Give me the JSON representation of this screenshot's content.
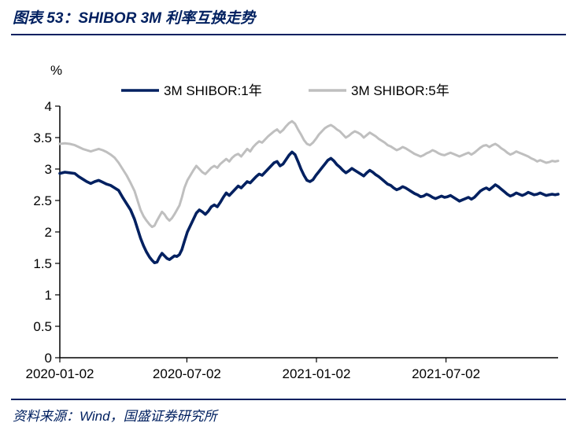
{
  "header": {
    "title": "图表 53：SHIBOR 3M 利率互换走势"
  },
  "footer": {
    "source": "资料来源：Wind，国盛证券研究所"
  },
  "chart": {
    "type": "line",
    "y_unit_label": "%",
    "background_color": "#ffffff",
    "axis_color": "#000000",
    "tick_length": 6,
    "ylim": [
      0,
      4
    ],
    "ytick_step": 0.5,
    "yticks": [
      0,
      0.5,
      1,
      1.5,
      2,
      2.5,
      3,
      3.5,
      4
    ],
    "xticks": [
      {
        "t": 0.0,
        "label": "2020-01-02"
      },
      {
        "t": 0.255,
        "label": "2020-07-02"
      },
      {
        "t": 0.515,
        "label": "2021-01-02"
      },
      {
        "t": 0.775,
        "label": "2021-07-02"
      }
    ],
    "line_width_1y": 3.6,
    "line_width_5y": 3.0,
    "legend": {
      "items": [
        {
          "label": "3M SHIBOR:1年",
          "color": "#002060",
          "width": 3.6
        },
        {
          "label": "3M SHIBOR:5年",
          "color": "#bfbfbf",
          "width": 3.0
        }
      ]
    },
    "series_1y": {
      "color": "#002060",
      "points": [
        [
          0.0,
          2.93
        ],
        [
          0.01,
          2.95
        ],
        [
          0.02,
          2.94
        ],
        [
          0.03,
          2.93
        ],
        [
          0.038,
          2.88
        ],
        [
          0.046,
          2.84
        ],
        [
          0.054,
          2.8
        ],
        [
          0.062,
          2.77
        ],
        [
          0.07,
          2.8
        ],
        [
          0.078,
          2.82
        ],
        [
          0.086,
          2.79
        ],
        [
          0.094,
          2.76
        ],
        [
          0.102,
          2.74
        ],
        [
          0.11,
          2.7
        ],
        [
          0.118,
          2.66
        ],
        [
          0.126,
          2.55
        ],
        [
          0.134,
          2.45
        ],
        [
          0.142,
          2.35
        ],
        [
          0.15,
          2.2
        ],
        [
          0.156,
          2.05
        ],
        [
          0.162,
          1.9
        ],
        [
          0.168,
          1.78
        ],
        [
          0.174,
          1.68
        ],
        [
          0.18,
          1.6
        ],
        [
          0.185,
          1.55
        ],
        [
          0.19,
          1.51
        ],
        [
          0.195,
          1.52
        ],
        [
          0.2,
          1.6
        ],
        [
          0.205,
          1.66
        ],
        [
          0.21,
          1.62
        ],
        [
          0.215,
          1.58
        ],
        [
          0.22,
          1.56
        ],
        [
          0.225,
          1.59
        ],
        [
          0.23,
          1.62
        ],
        [
          0.235,
          1.61
        ],
        [
          0.24,
          1.64
        ],
        [
          0.245,
          1.72
        ],
        [
          0.25,
          1.85
        ],
        [
          0.256,
          2.0
        ],
        [
          0.262,
          2.1
        ],
        [
          0.268,
          2.2
        ],
        [
          0.274,
          2.3
        ],
        [
          0.28,
          2.35
        ],
        [
          0.286,
          2.32
        ],
        [
          0.292,
          2.28
        ],
        [
          0.298,
          2.33
        ],
        [
          0.304,
          2.4
        ],
        [
          0.31,
          2.43
        ],
        [
          0.316,
          2.4
        ],
        [
          0.322,
          2.47
        ],
        [
          0.328,
          2.55
        ],
        [
          0.334,
          2.62
        ],
        [
          0.34,
          2.58
        ],
        [
          0.346,
          2.63
        ],
        [
          0.352,
          2.68
        ],
        [
          0.358,
          2.73
        ],
        [
          0.364,
          2.7
        ],
        [
          0.37,
          2.75
        ],
        [
          0.376,
          2.8
        ],
        [
          0.382,
          2.78
        ],
        [
          0.388,
          2.83
        ],
        [
          0.394,
          2.88
        ],
        [
          0.4,
          2.92
        ],
        [
          0.406,
          2.9
        ],
        [
          0.412,
          2.95
        ],
        [
          0.418,
          3.0
        ],
        [
          0.424,
          3.05
        ],
        [
          0.43,
          3.1
        ],
        [
          0.436,
          3.12
        ],
        [
          0.442,
          3.05
        ],
        [
          0.448,
          3.08
        ],
        [
          0.454,
          3.15
        ],
        [
          0.46,
          3.22
        ],
        [
          0.466,
          3.27
        ],
        [
          0.472,
          3.23
        ],
        [
          0.478,
          3.12
        ],
        [
          0.484,
          3.0
        ],
        [
          0.49,
          2.9
        ],
        [
          0.496,
          2.82
        ],
        [
          0.502,
          2.8
        ],
        [
          0.508,
          2.83
        ],
        [
          0.514,
          2.9
        ],
        [
          0.52,
          2.96
        ],
        [
          0.526,
          3.02
        ],
        [
          0.532,
          3.08
        ],
        [
          0.538,
          3.14
        ],
        [
          0.544,
          3.17
        ],
        [
          0.55,
          3.13
        ],
        [
          0.556,
          3.07
        ],
        [
          0.562,
          3.03
        ],
        [
          0.568,
          2.98
        ],
        [
          0.574,
          2.94
        ],
        [
          0.58,
          2.97
        ],
        [
          0.586,
          3.01
        ],
        [
          0.592,
          2.98
        ],
        [
          0.598,
          2.95
        ],
        [
          0.604,
          2.92
        ],
        [
          0.61,
          2.89
        ],
        [
          0.616,
          2.94
        ],
        [
          0.622,
          2.98
        ],
        [
          0.628,
          2.95
        ],
        [
          0.634,
          2.91
        ],
        [
          0.64,
          2.88
        ],
        [
          0.646,
          2.84
        ],
        [
          0.652,
          2.8
        ],
        [
          0.658,
          2.76
        ],
        [
          0.664,
          2.74
        ],
        [
          0.67,
          2.7
        ],
        [
          0.676,
          2.67
        ],
        [
          0.682,
          2.69
        ],
        [
          0.688,
          2.72
        ],
        [
          0.694,
          2.7
        ],
        [
          0.7,
          2.67
        ],
        [
          0.706,
          2.64
        ],
        [
          0.712,
          2.61
        ],
        [
          0.718,
          2.59
        ],
        [
          0.724,
          2.56
        ],
        [
          0.73,
          2.57
        ],
        [
          0.736,
          2.6
        ],
        [
          0.742,
          2.58
        ],
        [
          0.748,
          2.55
        ],
        [
          0.754,
          2.53
        ],
        [
          0.76,
          2.55
        ],
        [
          0.766,
          2.57
        ],
        [
          0.772,
          2.55
        ],
        [
          0.778,
          2.56
        ],
        [
          0.784,
          2.58
        ],
        [
          0.79,
          2.55
        ],
        [
          0.796,
          2.52
        ],
        [
          0.802,
          2.49
        ],
        [
          0.808,
          2.51
        ],
        [
          0.814,
          2.53
        ],
        [
          0.82,
          2.55
        ],
        [
          0.826,
          2.52
        ],
        [
          0.832,
          2.55
        ],
        [
          0.838,
          2.6
        ],
        [
          0.844,
          2.65
        ],
        [
          0.85,
          2.68
        ],
        [
          0.856,
          2.7
        ],
        [
          0.862,
          2.67
        ],
        [
          0.868,
          2.71
        ],
        [
          0.874,
          2.75
        ],
        [
          0.88,
          2.72
        ],
        [
          0.886,
          2.68
        ],
        [
          0.892,
          2.64
        ],
        [
          0.898,
          2.6
        ],
        [
          0.904,
          2.57
        ],
        [
          0.91,
          2.59
        ],
        [
          0.916,
          2.62
        ],
        [
          0.922,
          2.6
        ],
        [
          0.928,
          2.58
        ],
        [
          0.934,
          2.6
        ],
        [
          0.94,
          2.63
        ],
        [
          0.946,
          2.61
        ],
        [
          0.952,
          2.59
        ],
        [
          0.958,
          2.6
        ],
        [
          0.964,
          2.62
        ],
        [
          0.97,
          2.6
        ],
        [
          0.976,
          2.58
        ],
        [
          0.982,
          2.59
        ],
        [
          0.988,
          2.6
        ],
        [
          0.994,
          2.59
        ],
        [
          1.0,
          2.6
        ]
      ]
    },
    "series_5y": {
      "color": "#bfbfbf",
      "points": [
        [
          0.0,
          3.4
        ],
        [
          0.01,
          3.41
        ],
        [
          0.02,
          3.4
        ],
        [
          0.03,
          3.38
        ],
        [
          0.038,
          3.35
        ],
        [
          0.046,
          3.32
        ],
        [
          0.054,
          3.3
        ],
        [
          0.062,
          3.28
        ],
        [
          0.07,
          3.3
        ],
        [
          0.078,
          3.32
        ],
        [
          0.086,
          3.3
        ],
        [
          0.094,
          3.27
        ],
        [
          0.102,
          3.23
        ],
        [
          0.11,
          3.18
        ],
        [
          0.118,
          3.1
        ],
        [
          0.126,
          3.0
        ],
        [
          0.134,
          2.9
        ],
        [
          0.142,
          2.78
        ],
        [
          0.15,
          2.65
        ],
        [
          0.156,
          2.5
        ],
        [
          0.162,
          2.35
        ],
        [
          0.168,
          2.25
        ],
        [
          0.174,
          2.18
        ],
        [
          0.18,
          2.12
        ],
        [
          0.185,
          2.08
        ],
        [
          0.19,
          2.1
        ],
        [
          0.195,
          2.18
        ],
        [
          0.2,
          2.25
        ],
        [
          0.205,
          2.32
        ],
        [
          0.21,
          2.28
        ],
        [
          0.215,
          2.22
        ],
        [
          0.22,
          2.18
        ],
        [
          0.225,
          2.22
        ],
        [
          0.23,
          2.28
        ],
        [
          0.235,
          2.35
        ],
        [
          0.24,
          2.42
        ],
        [
          0.245,
          2.55
        ],
        [
          0.25,
          2.7
        ],
        [
          0.256,
          2.82
        ],
        [
          0.262,
          2.9
        ],
        [
          0.268,
          2.98
        ],
        [
          0.274,
          3.05
        ],
        [
          0.28,
          3.0
        ],
        [
          0.286,
          2.95
        ],
        [
          0.292,
          2.92
        ],
        [
          0.298,
          2.97
        ],
        [
          0.304,
          3.02
        ],
        [
          0.31,
          3.05
        ],
        [
          0.316,
          3.02
        ],
        [
          0.322,
          3.08
        ],
        [
          0.328,
          3.12
        ],
        [
          0.334,
          3.16
        ],
        [
          0.34,
          3.12
        ],
        [
          0.346,
          3.18
        ],
        [
          0.352,
          3.22
        ],
        [
          0.358,
          3.24
        ],
        [
          0.364,
          3.2
        ],
        [
          0.37,
          3.26
        ],
        [
          0.376,
          3.32
        ],
        [
          0.382,
          3.28
        ],
        [
          0.388,
          3.35
        ],
        [
          0.394,
          3.4
        ],
        [
          0.4,
          3.44
        ],
        [
          0.406,
          3.42
        ],
        [
          0.412,
          3.47
        ],
        [
          0.418,
          3.52
        ],
        [
          0.424,
          3.56
        ],
        [
          0.43,
          3.6
        ],
        [
          0.436,
          3.63
        ],
        [
          0.442,
          3.58
        ],
        [
          0.448,
          3.62
        ],
        [
          0.454,
          3.68
        ],
        [
          0.46,
          3.73
        ],
        [
          0.466,
          3.76
        ],
        [
          0.472,
          3.72
        ],
        [
          0.478,
          3.63
        ],
        [
          0.484,
          3.55
        ],
        [
          0.49,
          3.46
        ],
        [
          0.496,
          3.4
        ],
        [
          0.502,
          3.38
        ],
        [
          0.508,
          3.42
        ],
        [
          0.514,
          3.48
        ],
        [
          0.52,
          3.55
        ],
        [
          0.526,
          3.6
        ],
        [
          0.532,
          3.65
        ],
        [
          0.538,
          3.68
        ],
        [
          0.544,
          3.7
        ],
        [
          0.55,
          3.67
        ],
        [
          0.556,
          3.63
        ],
        [
          0.562,
          3.6
        ],
        [
          0.568,
          3.55
        ],
        [
          0.574,
          3.5
        ],
        [
          0.58,
          3.53
        ],
        [
          0.586,
          3.57
        ],
        [
          0.592,
          3.6
        ],
        [
          0.598,
          3.58
        ],
        [
          0.604,
          3.55
        ],
        [
          0.61,
          3.5
        ],
        [
          0.616,
          3.54
        ],
        [
          0.622,
          3.58
        ],
        [
          0.628,
          3.55
        ],
        [
          0.634,
          3.52
        ],
        [
          0.64,
          3.48
        ],
        [
          0.646,
          3.45
        ],
        [
          0.652,
          3.42
        ],
        [
          0.658,
          3.38
        ],
        [
          0.664,
          3.36
        ],
        [
          0.67,
          3.33
        ],
        [
          0.676,
          3.3
        ],
        [
          0.682,
          3.32
        ],
        [
          0.688,
          3.35
        ],
        [
          0.694,
          3.33
        ],
        [
          0.7,
          3.3
        ],
        [
          0.706,
          3.27
        ],
        [
          0.712,
          3.24
        ],
        [
          0.718,
          3.22
        ],
        [
          0.724,
          3.2
        ],
        [
          0.73,
          3.22
        ],
        [
          0.736,
          3.25
        ],
        [
          0.742,
          3.27
        ],
        [
          0.748,
          3.3
        ],
        [
          0.754,
          3.28
        ],
        [
          0.76,
          3.25
        ],
        [
          0.766,
          3.23
        ],
        [
          0.772,
          3.22
        ],
        [
          0.778,
          3.24
        ],
        [
          0.784,
          3.26
        ],
        [
          0.79,
          3.24
        ],
        [
          0.796,
          3.22
        ],
        [
          0.802,
          3.2
        ],
        [
          0.808,
          3.22
        ],
        [
          0.814,
          3.24
        ],
        [
          0.82,
          3.26
        ],
        [
          0.826,
          3.23
        ],
        [
          0.832,
          3.26
        ],
        [
          0.838,
          3.3
        ],
        [
          0.844,
          3.34
        ],
        [
          0.85,
          3.37
        ],
        [
          0.856,
          3.38
        ],
        [
          0.862,
          3.35
        ],
        [
          0.868,
          3.38
        ],
        [
          0.874,
          3.4
        ],
        [
          0.88,
          3.37
        ],
        [
          0.886,
          3.33
        ],
        [
          0.892,
          3.3
        ],
        [
          0.898,
          3.26
        ],
        [
          0.904,
          3.23
        ],
        [
          0.91,
          3.25
        ],
        [
          0.916,
          3.28
        ],
        [
          0.922,
          3.26
        ],
        [
          0.928,
          3.24
        ],
        [
          0.934,
          3.22
        ],
        [
          0.94,
          3.2
        ],
        [
          0.946,
          3.17
        ],
        [
          0.952,
          3.15
        ],
        [
          0.958,
          3.12
        ],
        [
          0.964,
          3.14
        ],
        [
          0.97,
          3.12
        ],
        [
          0.976,
          3.1
        ],
        [
          0.982,
          3.11
        ],
        [
          0.988,
          3.13
        ],
        [
          0.994,
          3.12
        ],
        [
          1.0,
          3.13
        ]
      ]
    }
  }
}
